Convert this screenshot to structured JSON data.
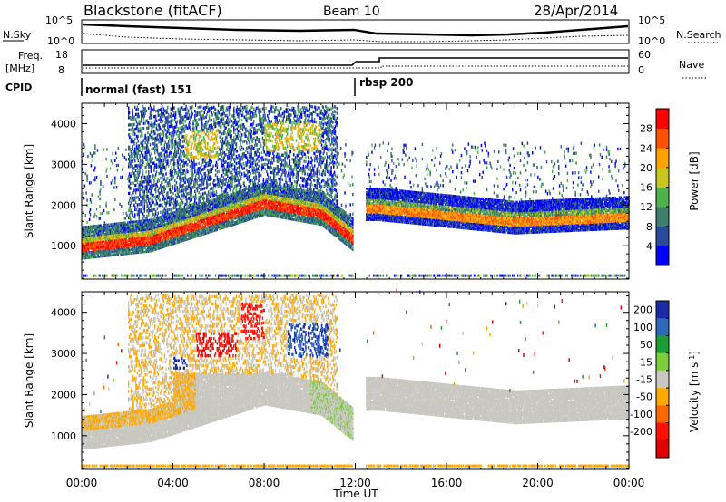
{
  "header": {
    "station": "Blackstone (fitACF)",
    "beam": "Beam 10",
    "date": "28/Apr/2014"
  },
  "top_panels": {
    "nsky_label": "N.Sky",
    "nsky_ticks": [
      "10^5",
      "10^0"
    ],
    "nsearch_label": "N.Search",
    "nsearch_ticks": [
      "10^5",
      "10^0"
    ],
    "freq_label_1": "Freq.",
    "freq_label_2": "[MHz]",
    "freq_ticks": [
      "18",
      "8"
    ],
    "nave_label": "Nave",
    "nave_ticks": [
      "60",
      "0"
    ],
    "cpid_label": "CPID",
    "cpid_modes": [
      {
        "label": "normal (fast) 151",
        "start_hour": 0,
        "end_hour": 12
      },
      {
        "label": "rbsp 200",
        "start_hour": 12,
        "end_hour": 24
      }
    ]
  },
  "chart_data": [
    {
      "type": "heatmap",
      "parameter": "power",
      "ylabel": "Slant Range [km]",
      "yticks": [
        1000,
        2000,
        3000,
        4000
      ],
      "ylim": [
        180,
        4500
      ],
      "xlim": [
        0,
        24
      ],
      "colorbar_label": "Power [dB]",
      "colorbar_ticks": [
        4,
        8,
        12,
        16,
        20,
        24,
        28
      ],
      "colorbar_range": [
        0,
        32
      ],
      "colors": [
        "#0000ff",
        "#2a4b9b",
        "#3e7e6a",
        "#4fb14c",
        "#c6c61e",
        "#ffa200",
        "#ff5200",
        "#ff0000"
      ]
    },
    {
      "type": "heatmap",
      "parameter": "velocity",
      "ylabel": "Slant Range [km]",
      "yticks": [
        1000,
        2000,
        3000,
        4000
      ],
      "ylim": [
        180,
        4500
      ],
      "xlim": [
        0,
        24
      ],
      "xlabel": "Time UT",
      "xticks": [
        "00:00",
        "04:00",
        "08:00",
        "12:00",
        "16:00",
        "20:00",
        "00:00"
      ],
      "colorbar_label_main": "Velocity [m s",
      "colorbar_label_sup": "-1",
      "colorbar_label_end": "]",
      "colorbar_ticks": [
        "200",
        "100",
        "50",
        "15",
        "-15",
        "-50",
        "-100",
        "-200"
      ],
      "colors": [
        "#1a2aa8",
        "#2e6ab8",
        "#1e9e32",
        "#7ccc3c",
        "#c8c8c0",
        "#ffa800",
        "#ff6800",
        "#ff1000",
        "#e00000"
      ]
    }
  ]
}
